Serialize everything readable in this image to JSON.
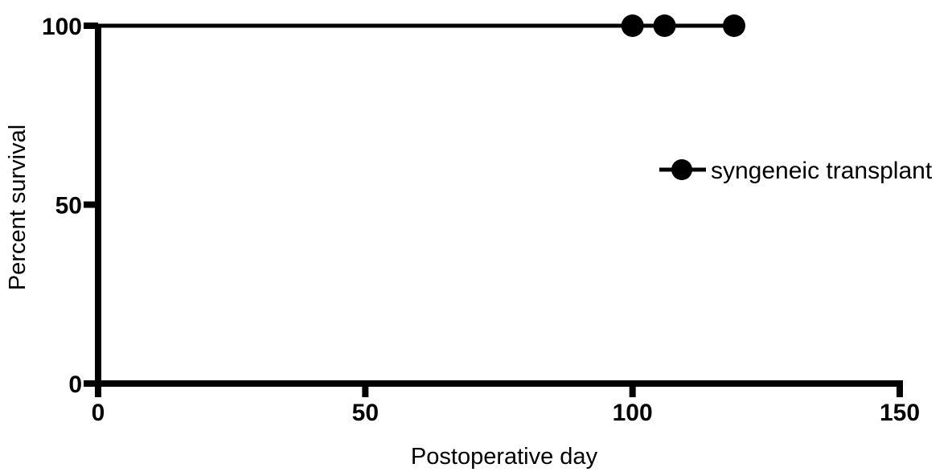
{
  "chart_data": {
    "type": "line",
    "variant": "kaplan-meier-survival",
    "title": "",
    "xlabel": "Postoperative day",
    "ylabel": "Percent survival",
    "xlim": [
      0,
      150
    ],
    "ylim": [
      0,
      100
    ],
    "x_ticks": [
      "0",
      "50",
      "100",
      "150"
    ],
    "x_tick_values": [
      0,
      50,
      100,
      150
    ],
    "y_ticks": [
      "0",
      "50",
      "100"
    ],
    "y_tick_values": [
      0,
      50,
      100
    ],
    "grid": false,
    "background_color": "#ffffff",
    "ink_color": "#000000",
    "series": [
      {
        "name": "syngeneic transplant",
        "color": "#000000",
        "marker": "filled-circle",
        "survival_percent": 100,
        "line_points": [
          {
            "x": 0,
            "y": 100
          },
          {
            "x": 119,
            "y": 100
          }
        ],
        "censor_marks": [
          {
            "x": 100,
            "y": 100
          },
          {
            "x": 106,
            "y": 100
          },
          {
            "x": 119,
            "y": 100
          }
        ]
      }
    ],
    "legend": {
      "position": "right-middle",
      "items": [
        {
          "label": "syngeneic transplant",
          "swatch": "filled-circle-on-line",
          "color": "#000000"
        }
      ]
    }
  }
}
